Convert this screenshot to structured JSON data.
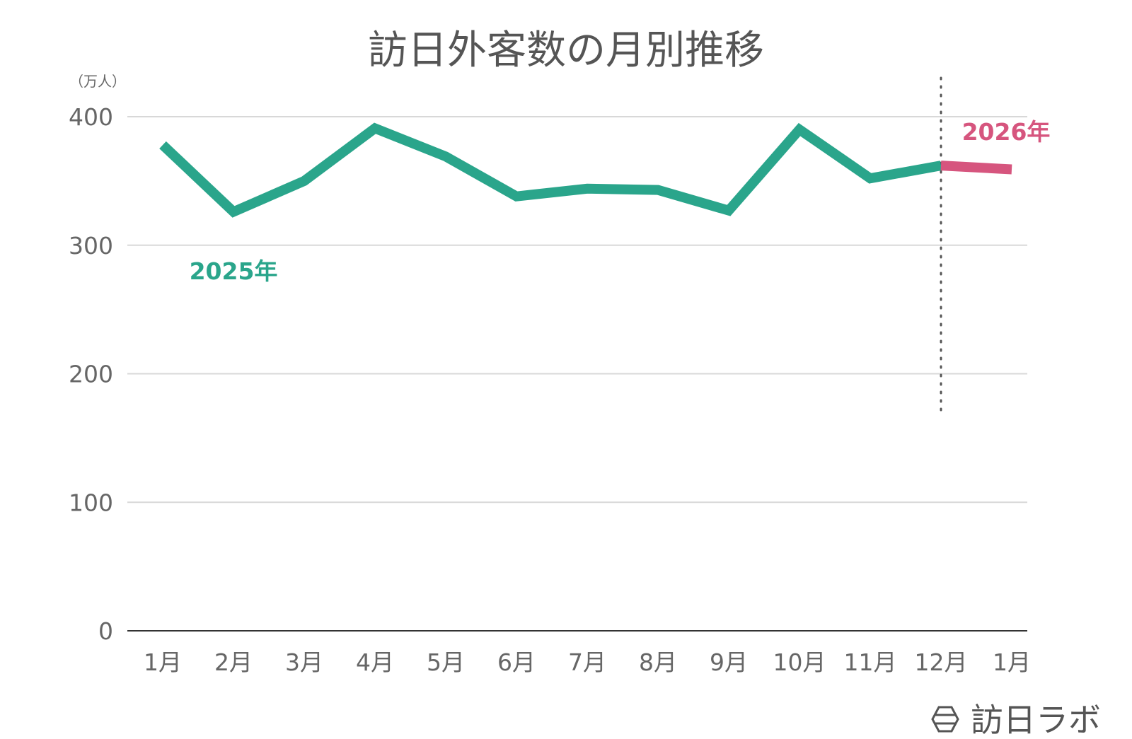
{
  "chart_data": {
    "type": "line",
    "title": "訪日外客数の月別推移",
    "unit_label": "（万人）",
    "xlabel": "",
    "ylabel": "",
    "ylim": [
      0,
      400
    ],
    "yticks": [
      "0",
      "100",
      "200",
      "300",
      "400"
    ],
    "categories": [
      "1月",
      "2月",
      "3月",
      "4月",
      "5月",
      "6月",
      "7月",
      "8月",
      "9月",
      "10月",
      "11月",
      "12月",
      "1月"
    ],
    "grid": true,
    "series": [
      {
        "name": "2025年",
        "color": "#2aa58b",
        "points": [
          {
            "x": "1月",
            "y": 378
          },
          {
            "x": "2月",
            "y": 326
          },
          {
            "x": "3月",
            "y": 350
          },
          {
            "x": "4月",
            "y": 391
          },
          {
            "x": "5月",
            "y": 369
          },
          {
            "x": "6月",
            "y": 338
          },
          {
            "x": "7月",
            "y": 344
          },
          {
            "x": "8月",
            "y": 343
          },
          {
            "x": "9月",
            "y": 327
          },
          {
            "x": "10月",
            "y": 390
          },
          {
            "x": "11月",
            "y": 352
          },
          {
            "x": "12月",
            "y": 362
          }
        ]
      },
      {
        "name": "2026年",
        "color": "#d6557e",
        "points": [
          {
            "x": "12月",
            "y": 362
          },
          {
            "x": "1月",
            "y": 359
          }
        ]
      }
    ],
    "divider_after": "12月"
  },
  "brand": {
    "name": "訪日ラボ",
    "icon": "hexagon-logo-icon"
  },
  "colors": {
    "grid": "#d8d8d8",
    "axis": "#333333",
    "divider": "#555555"
  }
}
